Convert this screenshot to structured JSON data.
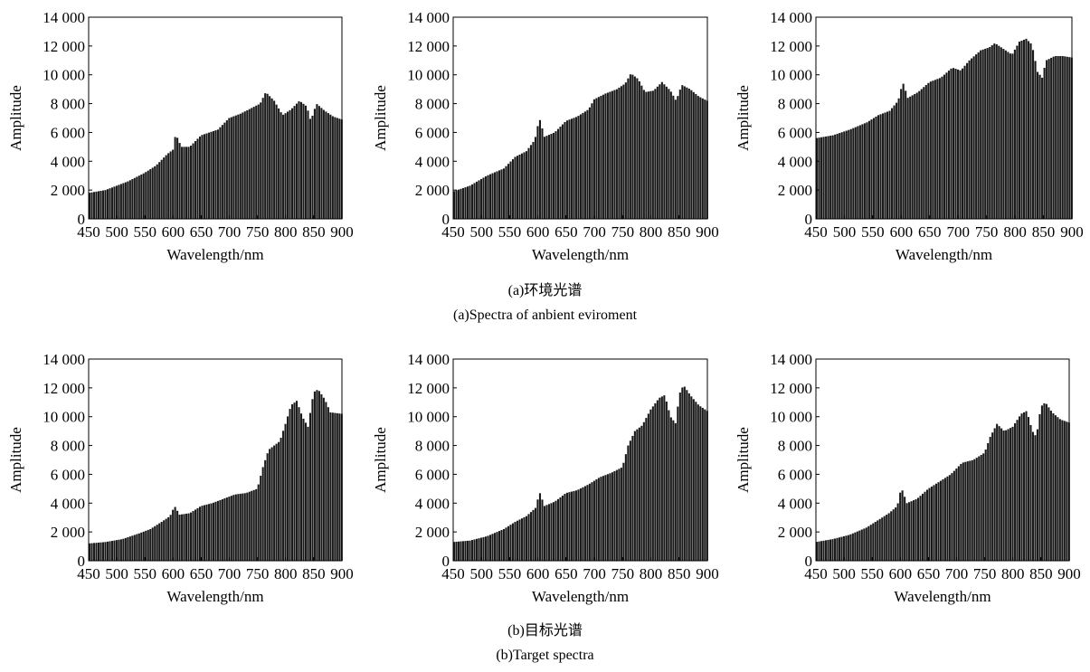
{
  "figure": {
    "captions": {
      "a_cn": "(a)环境光谱",
      "a_en": "(a)Spectra of anbient eviroment",
      "b_cn": "(b)目标光谱",
      "b_en": "(b)Target spectra"
    },
    "colors": {
      "bar": "#1a1a1a",
      "axis": "#000000",
      "background": "#ffffff"
    }
  },
  "chart_data": [
    {
      "type": "bar",
      "group": "a",
      "xlabel": "Wavelength/nm",
      "ylabel": "Amplitude",
      "xlim": [
        450,
        900
      ],
      "ylim": [
        0,
        14000
      ],
      "xticks": [
        450,
        500,
        550,
        600,
        650,
        700,
        750,
        800,
        850,
        900
      ],
      "yticks": [
        0,
        2000,
        4000,
        6000,
        8000,
        10000,
        12000,
        14000
      ],
      "ytick_labels": [
        "0",
        "2 000",
        "4 000",
        "6 000",
        "8 000",
        "10 000",
        "12 000",
        "14 000"
      ],
      "grid": false,
      "bin_width": 4,
      "profile": [
        [
          450,
          1800
        ],
        [
          480,
          2000
        ],
        [
          500,
          2300
        ],
        [
          520,
          2600
        ],
        [
          550,
          3200
        ],
        [
          570,
          3700
        ],
        [
          590,
          4500
        ],
        [
          600,
          4800
        ],
        [
          605,
          5900
        ],
        [
          615,
          5000
        ],
        [
          630,
          5000
        ],
        [
          650,
          5800
        ],
        [
          680,
          6200
        ],
        [
          700,
          7000
        ],
        [
          720,
          7300
        ],
        [
          740,
          7700
        ],
        [
          755,
          8000
        ],
        [
          765,
          8800
        ],
        [
          780,
          8200
        ],
        [
          795,
          7200
        ],
        [
          810,
          7600
        ],
        [
          825,
          8200
        ],
        [
          838,
          7800
        ],
        [
          845,
          6800
        ],
        [
          855,
          8000
        ],
        [
          870,
          7500
        ],
        [
          885,
          7100
        ],
        [
          900,
          6900
        ]
      ]
    },
    {
      "type": "bar",
      "group": "a",
      "xlabel": "Wavelength/nm",
      "ylabel": "Amplitude",
      "xlim": [
        450,
        900
      ],
      "ylim": [
        0,
        14000
      ],
      "xticks": [
        450,
        500,
        550,
        600,
        650,
        700,
        750,
        800,
        850,
        900
      ],
      "yticks": [
        0,
        2000,
        4000,
        6000,
        8000,
        10000,
        12000,
        14000
      ],
      "ytick_labels": [
        "0",
        "2 000",
        "4 000",
        "6 000",
        "8 000",
        "10 000",
        "12 000",
        "14 000"
      ],
      "grid": false,
      "bin_width": 4,
      "profile": [
        [
          450,
          1900
        ],
        [
          480,
          2300
        ],
        [
          510,
          3000
        ],
        [
          540,
          3500
        ],
        [
          560,
          4300
        ],
        [
          580,
          4700
        ],
        [
          595,
          5500
        ],
        [
          603,
          7000
        ],
        [
          612,
          5700
        ],
        [
          630,
          6000
        ],
        [
          650,
          6800
        ],
        [
          670,
          7100
        ],
        [
          690,
          7600
        ],
        [
          700,
          8300
        ],
        [
          720,
          8700
        ],
        [
          740,
          9000
        ],
        [
          755,
          9400
        ],
        [
          765,
          10100
        ],
        [
          778,
          9700
        ],
        [
          790,
          8800
        ],
        [
          805,
          8900
        ],
        [
          820,
          9500
        ],
        [
          835,
          8900
        ],
        [
          845,
          8200
        ],
        [
          855,
          9300
        ],
        [
          870,
          9000
        ],
        [
          885,
          8500
        ],
        [
          900,
          8200
        ]
      ]
    },
    {
      "type": "bar",
      "group": "a",
      "xlabel": "Wavelength/nm",
      "ylabel": "Amplitude",
      "xlim": [
        450,
        900
      ],
      "ylim": [
        0,
        14000
      ],
      "xticks": [
        450,
        500,
        550,
        600,
        650,
        700,
        750,
        800,
        850,
        900
      ],
      "yticks": [
        0,
        2000,
        4000,
        6000,
        8000,
        10000,
        12000,
        14000
      ],
      "ytick_labels": [
        "0",
        "2 000",
        "4 000",
        "6 000",
        "8 000",
        "10 000",
        "12 000",
        "14 000"
      ],
      "grid": false,
      "bin_width": 4,
      "profile": [
        [
          450,
          5600
        ],
        [
          480,
          5800
        ],
        [
          510,
          6200
        ],
        [
          540,
          6700
        ],
        [
          560,
          7200
        ],
        [
          580,
          7500
        ],
        [
          595,
          8200
        ],
        [
          603,
          9500
        ],
        [
          612,
          8400
        ],
        [
          630,
          8800
        ],
        [
          650,
          9500
        ],
        [
          670,
          9800
        ],
        [
          690,
          10500
        ],
        [
          705,
          10300
        ],
        [
          720,
          11000
        ],
        [
          740,
          11700
        ],
        [
          755,
          11900
        ],
        [
          765,
          12200
        ],
        [
          780,
          11800
        ],
        [
          795,
          11400
        ],
        [
          808,
          12300
        ],
        [
          820,
          12500
        ],
        [
          830,
          12100
        ],
        [
          840,
          10200
        ],
        [
          848,
          9800
        ],
        [
          855,
          11000
        ],
        [
          870,
          11300
        ],
        [
          885,
          11300
        ],
        [
          900,
          11200
        ]
      ]
    },
    {
      "type": "bar",
      "group": "b",
      "xlabel": "Wavelength/nm",
      "ylabel": "Amplitude",
      "xlim": [
        450,
        900
      ],
      "ylim": [
        0,
        14000
      ],
      "xticks": [
        450,
        500,
        550,
        600,
        650,
        700,
        750,
        800,
        850,
        900
      ],
      "yticks": [
        0,
        2000,
        4000,
        6000,
        8000,
        10000,
        12000,
        14000
      ],
      "ytick_labels": [
        "0",
        "2 000",
        "4 000",
        "6 000",
        "8 000",
        "10 000",
        "12 000",
        "14 000"
      ],
      "grid": false,
      "bin_width": 4,
      "profile": [
        [
          450,
          1200
        ],
        [
          480,
          1300
        ],
        [
          510,
          1500
        ],
        [
          540,
          1900
        ],
        [
          560,
          2200
        ],
        [
          580,
          2700
        ],
        [
          595,
          3100
        ],
        [
          603,
          3800
        ],
        [
          612,
          3200
        ],
        [
          630,
          3300
        ],
        [
          650,
          3800
        ],
        [
          670,
          4000
        ],
        [
          690,
          4300
        ],
        [
          710,
          4600
        ],
        [
          730,
          4700
        ],
        [
          750,
          5000
        ],
        [
          760,
          6500
        ],
        [
          770,
          7700
        ],
        [
          790,
          8300
        ],
        [
          800,
          9500
        ],
        [
          810,
          10800
        ],
        [
          820,
          11100
        ],
        [
          830,
          10000
        ],
        [
          840,
          9300
        ],
        [
          850,
          11700
        ],
        [
          858,
          11900
        ],
        [
          870,
          11200
        ],
        [
          880,
          10300
        ],
        [
          900,
          10200
        ]
      ]
    },
    {
      "type": "bar",
      "group": "b",
      "xlabel": "Wavelength/nm",
      "ylabel": "Amplitude",
      "xlim": [
        450,
        900
      ],
      "ylim": [
        0,
        14000
      ],
      "xticks": [
        450,
        500,
        550,
        600,
        650,
        700,
        750,
        800,
        850,
        900
      ],
      "yticks": [
        0,
        2000,
        4000,
        6000,
        8000,
        10000,
        12000,
        14000
      ],
      "ytick_labels": [
        "0",
        "2 000",
        "4 000",
        "6 000",
        "8 000",
        "10 000",
        "12 000",
        "14 000"
      ],
      "grid": false,
      "bin_width": 4,
      "profile": [
        [
          450,
          1300
        ],
        [
          480,
          1400
        ],
        [
          510,
          1700
        ],
        [
          540,
          2200
        ],
        [
          560,
          2700
        ],
        [
          580,
          3100
        ],
        [
          597,
          3700
        ],
        [
          603,
          4800
        ],
        [
          612,
          3800
        ],
        [
          630,
          4100
        ],
        [
          650,
          4700
        ],
        [
          670,
          4900
        ],
        [
          690,
          5300
        ],
        [
          710,
          5800
        ],
        [
          730,
          6100
        ],
        [
          750,
          6500
        ],
        [
          760,
          8000
        ],
        [
          772,
          9000
        ],
        [
          785,
          9400
        ],
        [
          800,
          10500
        ],
        [
          815,
          11300
        ],
        [
          825,
          11500
        ],
        [
          835,
          10000
        ],
        [
          845,
          9500
        ],
        [
          850,
          11500
        ],
        [
          858,
          12200
        ],
        [
          870,
          11500
        ],
        [
          885,
          10800
        ],
        [
          900,
          10400
        ]
      ]
    },
    {
      "type": "bar",
      "group": "b",
      "xlabel": "Wavelength/nm",
      "ylabel": "Amplitude",
      "xlim": [
        450,
        900
      ],
      "ylim": [
        0,
        14000
      ],
      "xticks": [
        450,
        500,
        550,
        600,
        650,
        700,
        750,
        800,
        850,
        900
      ],
      "yticks": [
        0,
        2000,
        4000,
        6000,
        8000,
        10000,
        12000,
        14000
      ],
      "ytick_labels": [
        "0",
        "2 000",
        "4 000",
        "6 000",
        "8 000",
        "10 000",
        "12 000",
        "14 000"
      ],
      "grid": false,
      "bin_width": 4,
      "profile": [
        [
          450,
          1300
        ],
        [
          480,
          1500
        ],
        [
          510,
          1800
        ],
        [
          540,
          2300
        ],
        [
          560,
          2800
        ],
        [
          580,
          3300
        ],
        [
          595,
          3800
        ],
        [
          602,
          5100
        ],
        [
          612,
          4000
        ],
        [
          630,
          4300
        ],
        [
          650,
          5000
        ],
        [
          670,
          5500
        ],
        [
          690,
          6000
        ],
        [
          710,
          6800
        ],
        [
          730,
          7000
        ],
        [
          750,
          7500
        ],
        [
          760,
          8600
        ],
        [
          772,
          9500
        ],
        [
          785,
          9000
        ],
        [
          800,
          9300
        ],
        [
          815,
          10200
        ],
        [
          825,
          10400
        ],
        [
          835,
          9000
        ],
        [
          842,
          8600
        ],
        [
          850,
          10700
        ],
        [
          858,
          11000
        ],
        [
          870,
          10300
        ],
        [
          885,
          9800
        ],
        [
          900,
          9600
        ]
      ]
    }
  ]
}
